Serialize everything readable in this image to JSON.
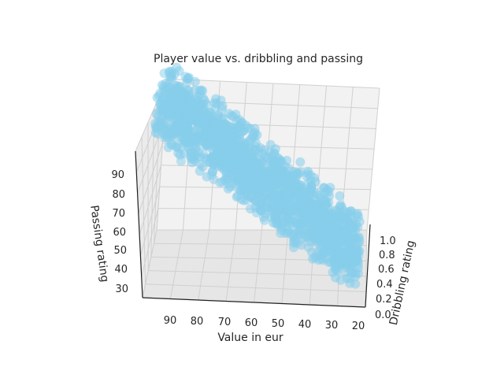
{
  "chart_data": {
    "type": "scatter3d",
    "title": "Player value vs. dribbling and passing",
    "xlabel": "Value in eur",
    "ylabel": "Dribbling rating",
    "zlabel": "Passing rating",
    "x_ticks": [
      "90",
      "80",
      "70",
      "60",
      "50",
      "40",
      "30",
      "20"
    ],
    "y_ticks": [
      "0.0",
      "0.2",
      "0.4",
      "0.6",
      "0.8",
      "1.0"
    ],
    "z_ticks": [
      "30",
      "40",
      "50",
      "60",
      "70",
      "80",
      "90"
    ],
    "grid": true,
    "marker_color": "#87ceeb",
    "points_description": "dense cloud; passing rating rises as value rises",
    "points": [
      [
        96,
        0.9,
        92
      ],
      [
        93,
        0.9,
        90
      ],
      [
        92,
        0.5,
        87
      ],
      [
        86,
        0.5,
        85
      ],
      [
        84,
        0.6,
        82
      ],
      [
        82,
        0.4,
        80
      ],
      [
        80,
        0.5,
        77
      ],
      [
        78,
        0.3,
        74
      ],
      [
        72,
        0.6,
        73
      ],
      [
        70,
        0.5,
        70
      ],
      [
        68,
        0.4,
        66
      ],
      [
        64,
        0.5,
        62
      ],
      [
        60,
        0.4,
        58
      ],
      [
        58,
        0.5,
        56
      ],
      [
        55,
        0.4,
        52
      ],
      [
        52,
        0.5,
        49
      ],
      [
        48,
        0.4,
        46
      ],
      [
        44,
        0.5,
        43
      ],
      [
        40,
        0.4,
        40
      ],
      [
        36,
        0.5,
        38
      ],
      [
        32,
        0.4,
        36
      ],
      [
        28,
        0.5,
        33
      ],
      [
        25,
        0.4,
        31
      ],
      [
        22,
        0.5,
        30
      ],
      [
        20,
        0.5,
        30
      ],
      [
        90,
        0.4,
        80
      ],
      [
        88,
        0.3,
        78
      ],
      [
        86,
        0.2,
        75
      ],
      [
        84,
        0.7,
        79
      ],
      [
        80,
        0.8,
        76
      ],
      [
        76,
        0.6,
        71
      ],
      [
        74,
        0.2,
        68
      ],
      [
        72,
        0.3,
        64
      ],
      [
        70,
        0.8,
        66
      ],
      [
        66,
        0.7,
        63
      ],
      [
        62,
        0.2,
        60
      ],
      [
        60,
        0.7,
        61
      ],
      [
        58,
        0.2,
        55
      ],
      [
        56,
        0.8,
        57
      ],
      [
        54,
        0.6,
        55
      ],
      [
        50,
        0.3,
        50
      ],
      [
        50,
        0.7,
        51
      ],
      [
        46,
        0.6,
        47
      ],
      [
        44,
        0.2,
        44
      ],
      [
        42,
        0.7,
        44
      ],
      [
        38,
        0.3,
        41
      ],
      [
        36,
        0.7,
        40
      ],
      [
        34,
        0.2,
        37
      ],
      [
        30,
        0.6,
        35
      ],
      [
        28,
        0.2,
        34
      ],
      [
        26,
        0.7,
        33
      ],
      [
        24,
        0.3,
        32
      ],
      [
        22,
        0.7,
        31
      ],
      [
        94,
        0.7,
        86
      ],
      [
        91,
        0.2,
        84
      ],
      [
        88,
        0.8,
        84
      ],
      [
        85,
        0.3,
        81
      ],
      [
        82,
        0.6,
        80
      ],
      [
        79,
        0.2,
        74
      ],
      [
        77,
        0.7,
        75
      ],
      [
        75,
        0.4,
        72
      ],
      [
        73,
        0.8,
        70
      ],
      [
        71,
        0.2,
        67
      ],
      [
        69,
        0.6,
        68
      ],
      [
        67,
        0.3,
        64
      ],
      [
        65,
        0.8,
        63
      ],
      [
        63,
        0.4,
        61
      ],
      [
        61,
        0.6,
        60
      ],
      [
        59,
        0.3,
        57
      ],
      [
        57,
        0.7,
        56
      ],
      [
        55,
        0.2,
        52
      ],
      [
        53,
        0.8,
        54
      ],
      [
        51,
        0.5,
        50
      ],
      [
        49,
        0.2,
        47
      ],
      [
        47,
        0.8,
        49
      ],
      [
        45,
        0.4,
        46
      ],
      [
        43,
        0.6,
        44
      ],
      [
        41,
        0.3,
        42
      ],
      [
        39,
        0.8,
        42
      ],
      [
        37,
        0.4,
        40
      ],
      [
        35,
        0.6,
        39
      ],
      [
        33,
        0.3,
        37
      ],
      [
        31,
        0.8,
        37
      ],
      [
        29,
        0.4,
        35
      ],
      [
        27,
        0.6,
        34
      ],
      [
        25,
        0.2,
        32
      ],
      [
        23,
        0.8,
        32
      ],
      [
        21,
        0.4,
        31
      ],
      [
        20,
        0.7,
        31
      ],
      [
        87,
        0.6,
        78
      ],
      [
        83,
        0.4,
        73
      ],
      [
        79,
        0.5,
        70
      ],
      [
        75,
        0.3,
        67
      ],
      [
        71,
        0.5,
        65
      ],
      [
        67,
        0.5,
        60
      ],
      [
        63,
        0.3,
        57
      ],
      [
        59,
        0.6,
        54
      ],
      [
        55,
        0.5,
        51
      ],
      [
        51,
        0.3,
        48
      ],
      [
        47,
        0.5,
        45
      ],
      [
        43,
        0.5,
        42
      ],
      [
        39,
        0.5,
        39
      ],
      [
        35,
        0.3,
        37
      ],
      [
        31,
        0.5,
        35
      ],
      [
        27,
        0.4,
        33
      ],
      [
        91,
        0.6,
        88
      ],
      [
        89,
        0.5,
        83
      ],
      [
        85,
        0.7,
        83
      ],
      [
        81,
        0.3,
        78
      ],
      [
        77,
        0.5,
        73
      ],
      [
        73,
        0.5,
        69
      ],
      [
        69,
        0.3,
        64
      ],
      [
        65,
        0.6,
        62
      ],
      [
        61,
        0.5,
        59
      ],
      [
        57,
        0.3,
        54
      ],
      [
        53,
        0.6,
        52
      ],
      [
        49,
        0.5,
        48
      ],
      [
        45,
        0.3,
        44
      ],
      [
        41,
        0.6,
        43
      ],
      [
        37,
        0.5,
        40
      ],
      [
        33,
        0.5,
        37
      ],
      [
        29,
        0.3,
        34
      ],
      [
        25,
        0.6,
        33
      ],
      [
        21,
        0.6,
        31
      ],
      [
        95,
        0.4,
        84
      ]
    ]
  }
}
